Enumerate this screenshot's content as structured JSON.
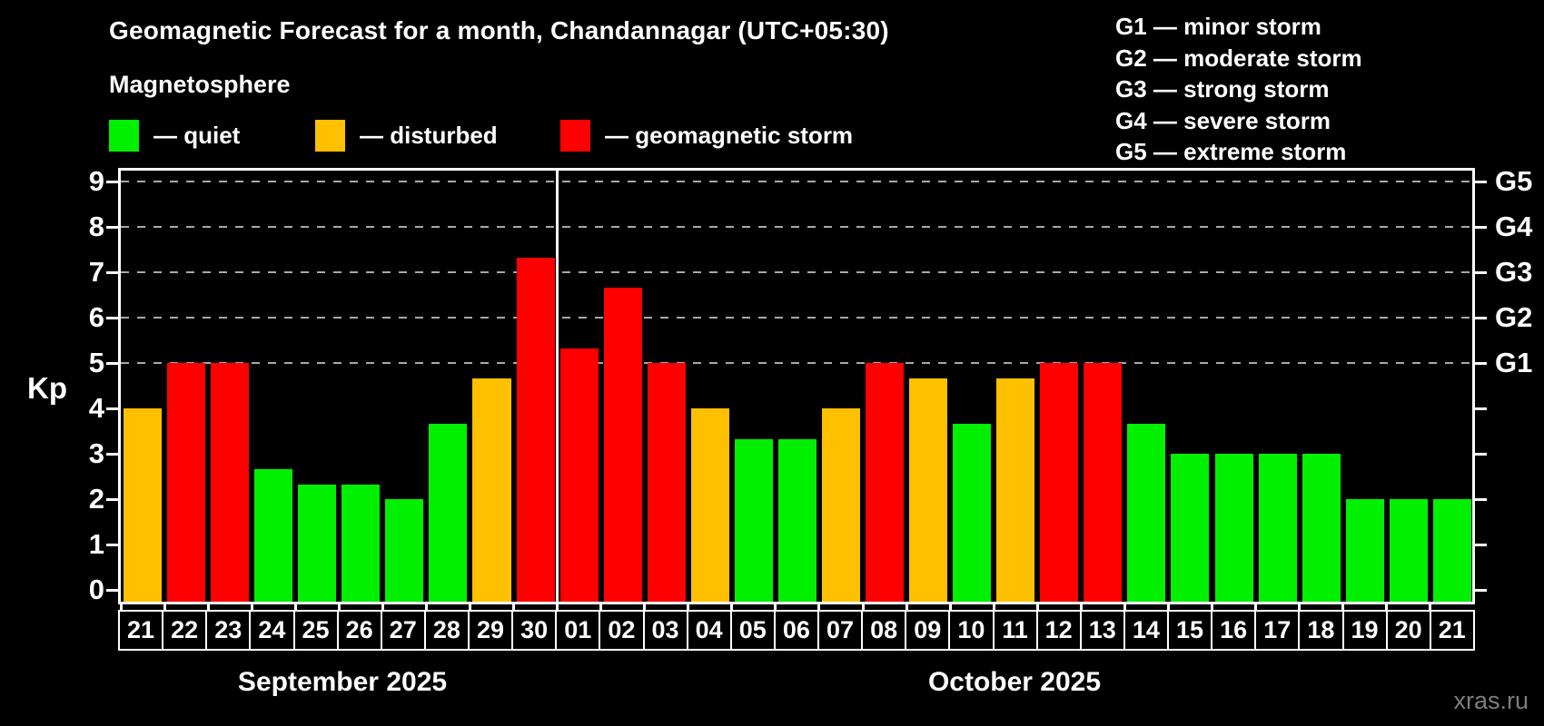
{
  "header": {
    "title": "Geomagnetic Forecast for a month, Chandannagar (UTC+05:30)",
    "subtitle": "Magnetosphere"
  },
  "legend": {
    "items": [
      {
        "key": "quiet",
        "label": "— quiet",
        "color": "#00f000"
      },
      {
        "key": "disturbed",
        "label": "— disturbed",
        "color": "#ffc000"
      },
      {
        "key": "storm",
        "label": "— geomagnetic storm",
        "color": "#ff0000"
      }
    ]
  },
  "storm_scale_legend": [
    "G1 — minor storm",
    "G2 — moderate storm",
    "G3 — strong storm",
    "G4 — severe storm",
    "G5 — extreme storm"
  ],
  "axis": {
    "kp_label": "Kp",
    "yticks": [
      0,
      1,
      2,
      3,
      4,
      5,
      6,
      7,
      8,
      9
    ],
    "grid_levels": [
      5,
      6,
      7,
      8,
      9
    ],
    "right_labels": [
      {
        "kp": 5,
        "label": "G1"
      },
      {
        "kp": 6,
        "label": "G2"
      },
      {
        "kp": 7,
        "label": "G3"
      },
      {
        "kp": 8,
        "label": "G4"
      },
      {
        "kp": 9,
        "label": "G5"
      }
    ]
  },
  "months": [
    {
      "label": "September 2025",
      "days": 10
    },
    {
      "label": "October 2025",
      "days": 21
    }
  ],
  "watermark": {
    "text": "xras.ru"
  },
  "chart_data": {
    "type": "bar",
    "title": "Geomagnetic Forecast for a month, Chandannagar (UTC+05:30)",
    "xlabel": "",
    "ylabel": "Kp",
    "ylim": [
      0,
      9.4
    ],
    "grid": "dashed horizontal at Kp 5-9",
    "legend_position": "top-left",
    "bars": [
      {
        "month": "September 2025",
        "day": "21",
        "kp": 4.0,
        "status": "disturbed"
      },
      {
        "month": "September 2025",
        "day": "22",
        "kp": 5.0,
        "status": "storm"
      },
      {
        "month": "September 2025",
        "day": "23",
        "kp": 5.0,
        "status": "storm"
      },
      {
        "month": "September 2025",
        "day": "24",
        "kp": 2.67,
        "status": "quiet"
      },
      {
        "month": "September 2025",
        "day": "25",
        "kp": 2.33,
        "status": "quiet"
      },
      {
        "month": "September 2025",
        "day": "26",
        "kp": 2.33,
        "status": "quiet"
      },
      {
        "month": "September 2025",
        "day": "27",
        "kp": 2.0,
        "status": "quiet"
      },
      {
        "month": "September 2025",
        "day": "28",
        "kp": 3.67,
        "status": "quiet"
      },
      {
        "month": "September 2025",
        "day": "29",
        "kp": 4.67,
        "status": "disturbed"
      },
      {
        "month": "September 2025",
        "day": "30",
        "kp": 7.33,
        "status": "storm"
      },
      {
        "month": "October 2025",
        "day": "01",
        "kp": 5.33,
        "status": "storm"
      },
      {
        "month": "October 2025",
        "day": "02",
        "kp": 6.67,
        "status": "storm"
      },
      {
        "month": "October 2025",
        "day": "03",
        "kp": 5.0,
        "status": "storm"
      },
      {
        "month": "October 2025",
        "day": "04",
        "kp": 4.0,
        "status": "disturbed"
      },
      {
        "month": "October 2025",
        "day": "05",
        "kp": 3.33,
        "status": "quiet"
      },
      {
        "month": "October 2025",
        "day": "06",
        "kp": 3.33,
        "status": "quiet"
      },
      {
        "month": "October 2025",
        "day": "07",
        "kp": 4.0,
        "status": "disturbed"
      },
      {
        "month": "October 2025",
        "day": "08",
        "kp": 5.0,
        "status": "storm"
      },
      {
        "month": "October 2025",
        "day": "09",
        "kp": 4.67,
        "status": "disturbed"
      },
      {
        "month": "October 2025",
        "day": "10",
        "kp": 3.67,
        "status": "quiet"
      },
      {
        "month": "October 2025",
        "day": "11",
        "kp": 4.67,
        "status": "disturbed"
      },
      {
        "month": "October 2025",
        "day": "12",
        "kp": 5.0,
        "status": "storm"
      },
      {
        "month": "October 2025",
        "day": "13",
        "kp": 5.0,
        "status": "storm"
      },
      {
        "month": "October 2025",
        "day": "14",
        "kp": 3.67,
        "status": "quiet"
      },
      {
        "month": "October 2025",
        "day": "15",
        "kp": 3.0,
        "status": "quiet"
      },
      {
        "month": "October 2025",
        "day": "16",
        "kp": 3.0,
        "status": "quiet"
      },
      {
        "month": "October 2025",
        "day": "17",
        "kp": 3.0,
        "status": "quiet"
      },
      {
        "month": "October 2025",
        "day": "18",
        "kp": 3.0,
        "status": "quiet"
      },
      {
        "month": "October 2025",
        "day": "19",
        "kp": 2.0,
        "status": "quiet"
      },
      {
        "month": "October 2025",
        "day": "20",
        "kp": 2.0,
        "status": "quiet"
      },
      {
        "month": "October 2025",
        "day": "21",
        "kp": 2.0,
        "status": "quiet"
      }
    ],
    "colors": {
      "quiet": "#00f000",
      "disturbed": "#ffc000",
      "storm": "#ff0000"
    }
  }
}
